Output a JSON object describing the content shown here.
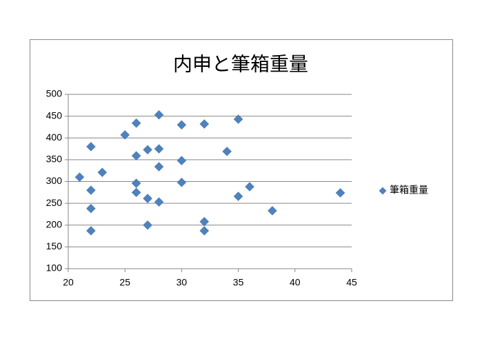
{
  "chart_data": {
    "type": "scatter",
    "title": "内申と筆箱重量",
    "series": [
      {
        "name": "筆箱重量",
        "color": "#4f81bd",
        "x": [
          21,
          22,
          22,
          22,
          22,
          23,
          25,
          26,
          26,
          26,
          26,
          27,
          27,
          27,
          28,
          28,
          28,
          28,
          30,
          30,
          30,
          32,
          32,
          32,
          34,
          35,
          35,
          36,
          38,
          44
        ],
        "values": [
          310,
          380,
          280,
          238,
          187,
          321,
          407,
          434,
          359,
          296,
          275,
          373,
          261,
          200,
          453,
          375,
          334,
          253,
          430,
          348,
          298,
          432,
          208,
          187,
          369,
          443,
          266,
          288,
          233,
          274
        ]
      }
    ],
    "xlim": [
      20,
      45
    ],
    "xticks": [
      20,
      25,
      30,
      35,
      40,
      45
    ],
    "ylim": [
      100,
      500
    ],
    "yticks": [
      100,
      150,
      200,
      250,
      300,
      350,
      400,
      450,
      500
    ],
    "grid": true,
    "legend": "right"
  }
}
